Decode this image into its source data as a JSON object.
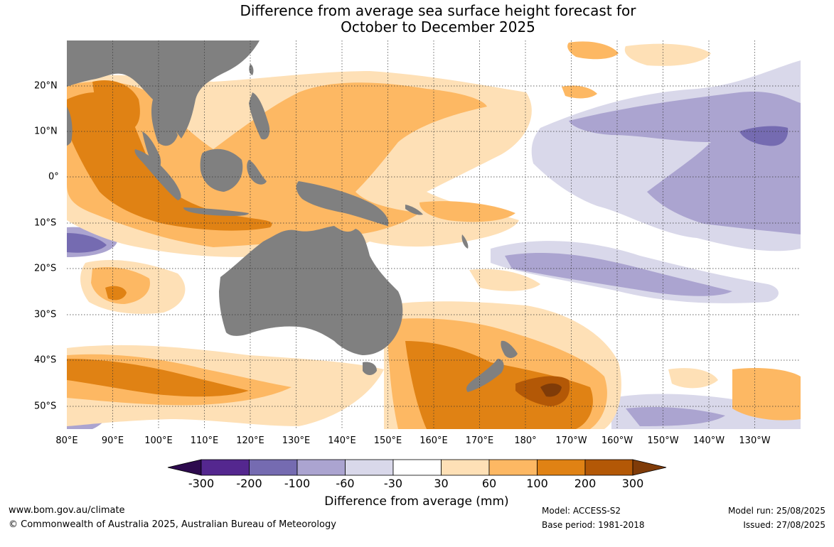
{
  "title": {
    "line1": "Difference from average sea surface height forecast for",
    "line2": "October to December 2025"
  },
  "map": {
    "longitude_labels": [
      "80°E",
      "90°E",
      "100°E",
      "110°E",
      "120°E",
      "130°E",
      "140°E",
      "150°E",
      "160°E",
      "170°E",
      "180°",
      "170°W",
      "160°W",
      "150°W",
      "140°W",
      "130°W"
    ],
    "latitude_labels": [
      "20°N",
      "10°N",
      "0°",
      "10°S",
      "20°S",
      "30°S",
      "40°S",
      "50°S"
    ],
    "land_color": "#808080",
    "grid_style": "dotted"
  },
  "colorbar": {
    "title": "Difference from average (mm)",
    "tick_labels": [
      "-300",
      "-200",
      "-100",
      "-60",
      "-30",
      "30",
      "60",
      "100",
      "200",
      "300"
    ],
    "bins": [
      {
        "range": "< -300",
        "color": "#2d0a4e"
      },
      {
        "range": "-300 to -200",
        "color": "#54278f"
      },
      {
        "range": "-200 to -100",
        "color": "#756bb1"
      },
      {
        "range": "-100 to -60",
        "color": "#aba4d0"
      },
      {
        "range": "-60 to -30",
        "color": "#d9d8ea"
      },
      {
        "range": "-30 to 30",
        "color": "#ffffff"
      },
      {
        "range": "30 to 60",
        "color": "#fee0b6"
      },
      {
        "range": "60 to 100",
        "color": "#fdb863"
      },
      {
        "range": "100 to 200",
        "color": "#e08214"
      },
      {
        "range": "200 to 300",
        "color": "#b35806"
      },
      {
        "range": "> 300",
        "color": "#7f3b08"
      }
    ]
  },
  "footer": {
    "website": "www.bom.gov.au/climate",
    "copyright": "© Commonwealth of Australia 2025, Australian Bureau of Meteorology",
    "model": "Model: ACCESS-S2",
    "base_period": "Base period: 1981-2018",
    "model_run": "Model run: 25/08/2025",
    "issued": "Issued: 27/08/2025"
  }
}
